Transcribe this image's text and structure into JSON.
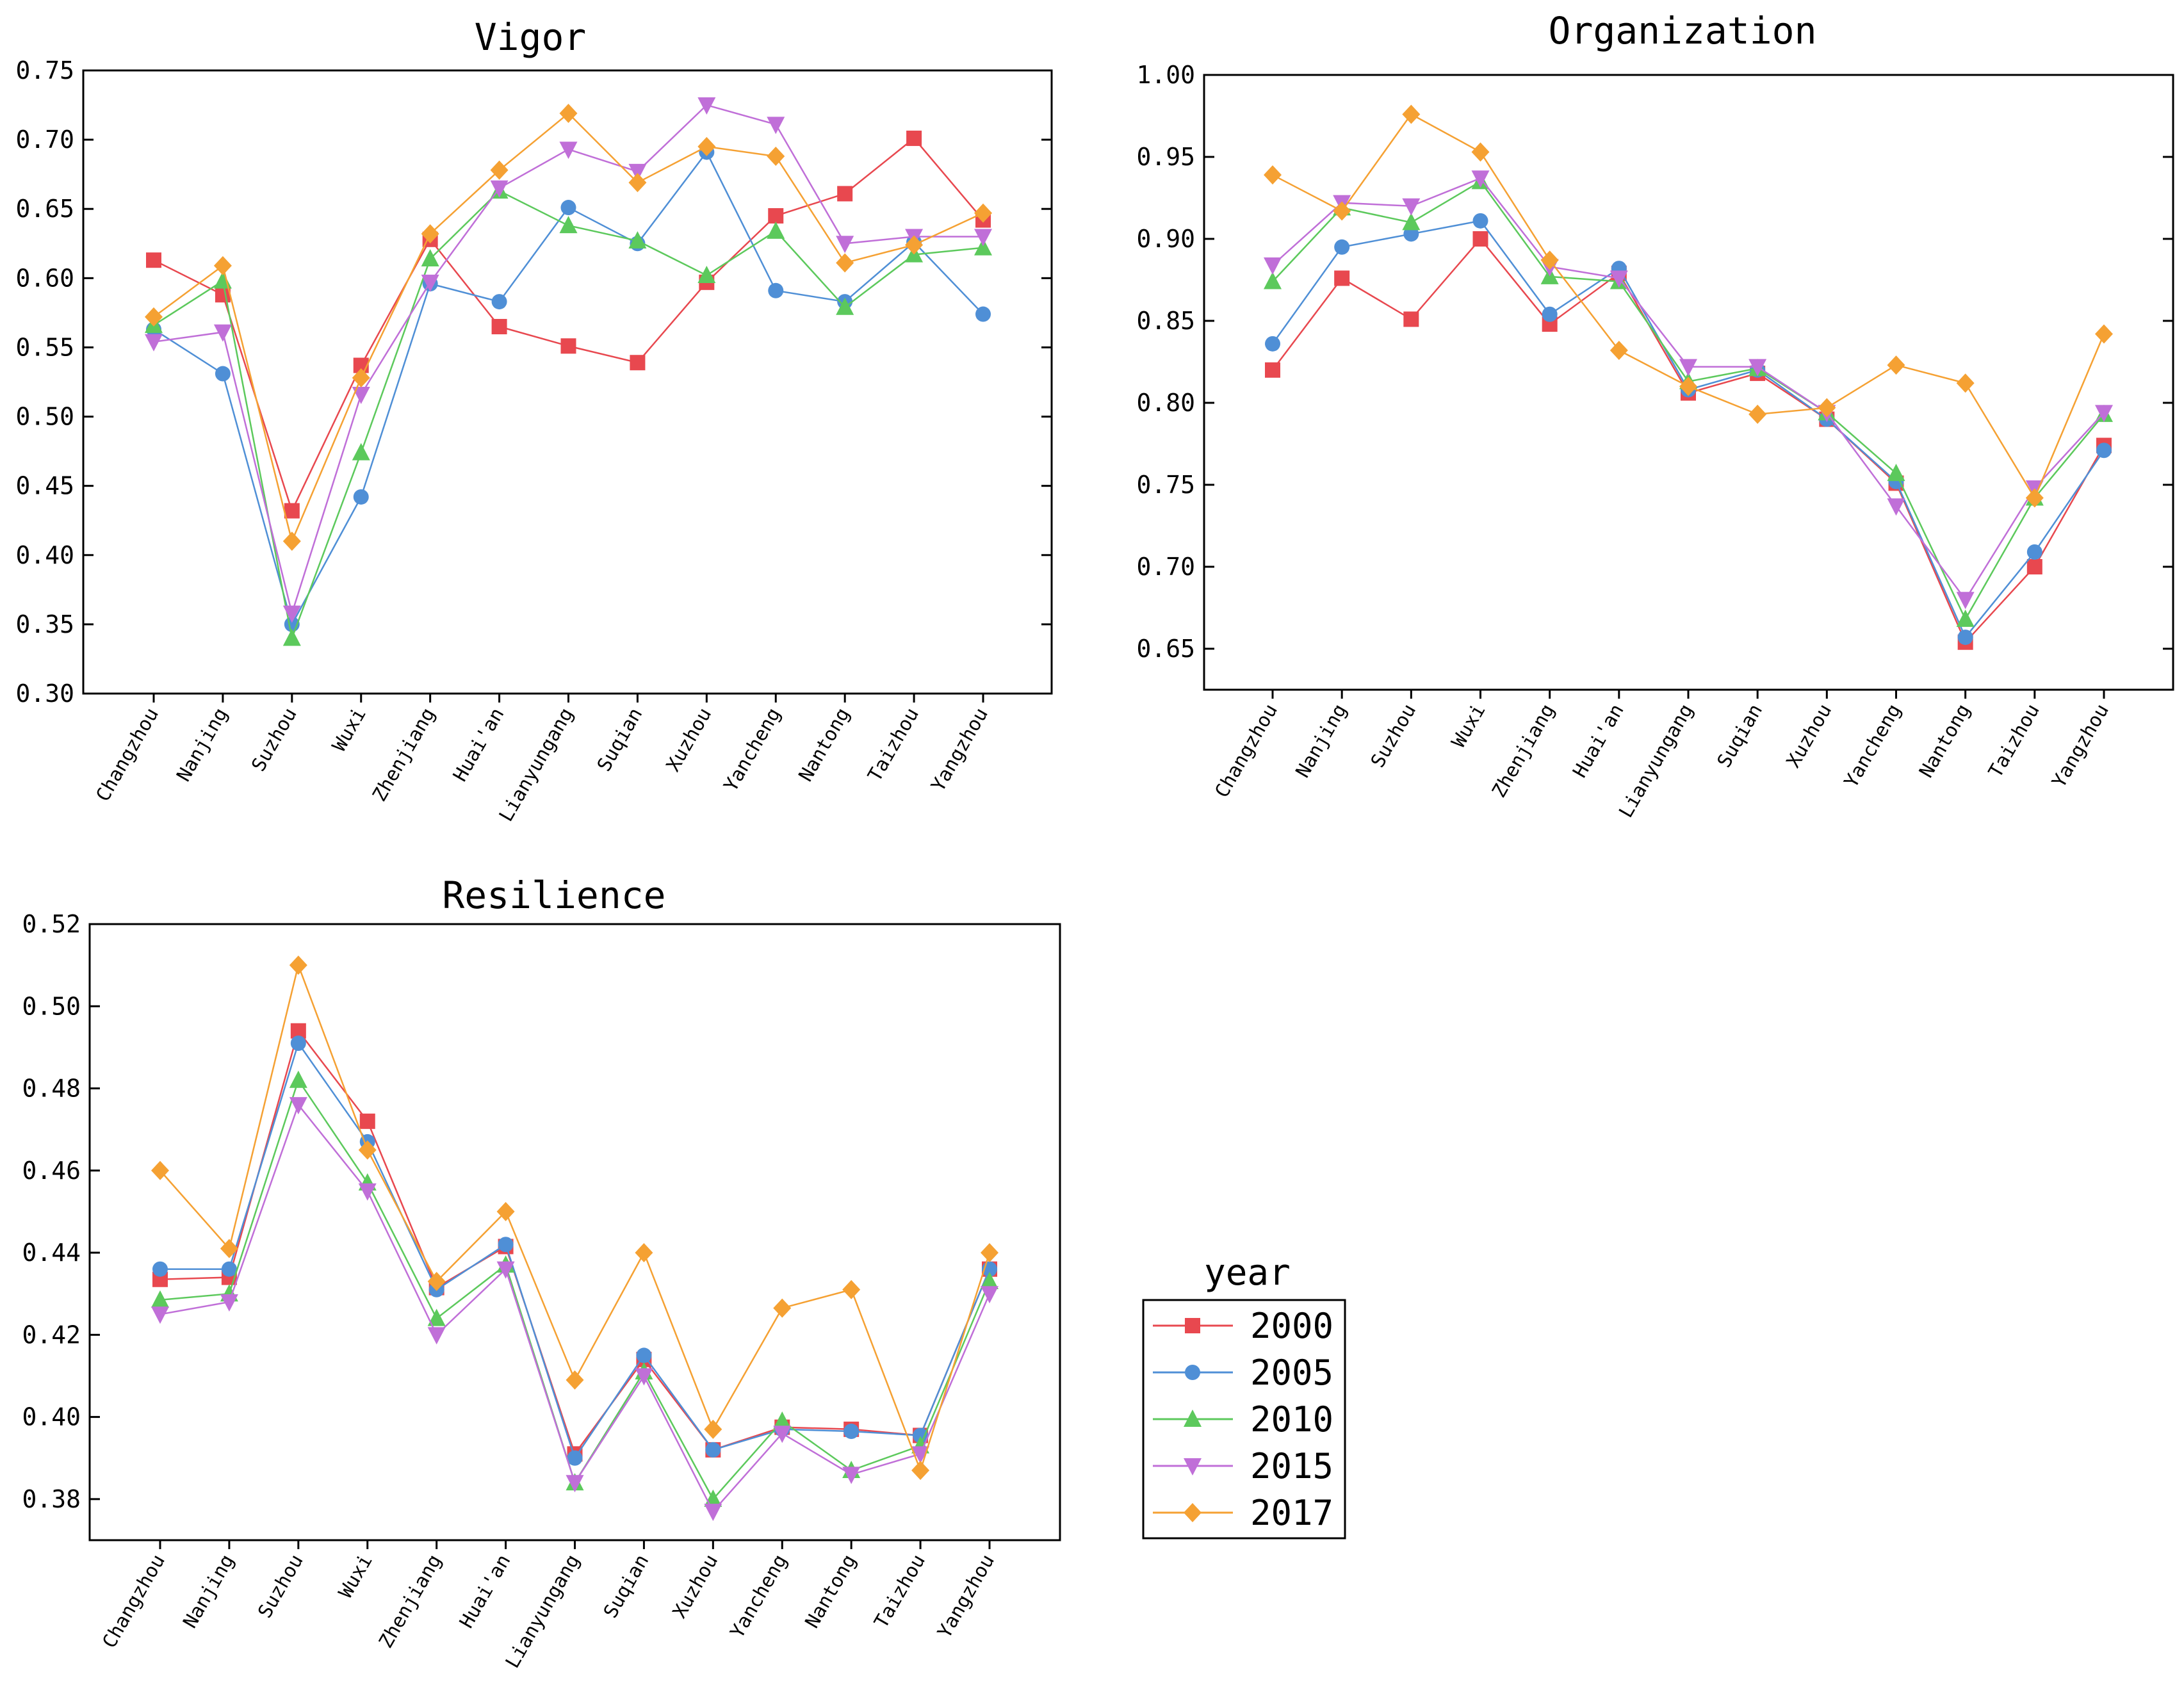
{
  "chart_data": [
    {
      "id": "vigor",
      "type": "line",
      "title": "Vigor",
      "xlabel": "",
      "ylabel": "",
      "ylim": [
        0.3,
        0.75
      ],
      "yticks": [
        "0.30",
        "0.35",
        "0.40",
        "0.45",
        "0.50",
        "0.55",
        "0.60",
        "0.65",
        "0.70",
        "0.75"
      ],
      "categories": [
        "Changzhou",
        "Nanjing",
        "Suzhou",
        "Wuxi",
        "Zhenjiang",
        "Huai'an",
        "Lianyungang",
        "Suqian",
        "Xuzhou",
        "Yancheng",
        "Nantong",
        "Taizhou",
        "Yangzhou"
      ],
      "series": [
        {
          "name": "2000",
          "values": [
            0.613,
            0.588,
            0.432,
            0.537,
            0.628,
            0.565,
            0.551,
            0.539,
            0.597,
            0.645,
            0.661,
            0.701,
            0.642
          ]
        },
        {
          "name": "2005",
          "values": [
            0.563,
            0.531,
            0.35,
            0.442,
            0.596,
            0.583,
            0.651,
            0.625,
            0.691,
            0.591,
            0.583,
            0.626,
            0.574
          ]
        },
        {
          "name": "2010",
          "values": [
            0.566,
            0.598,
            0.34,
            0.474,
            0.614,
            0.663,
            0.638,
            0.627,
            0.602,
            0.634,
            0.579,
            0.617,
            0.622
          ]
        },
        {
          "name": "2015",
          "values": [
            0.554,
            0.561,
            0.358,
            0.516,
            0.597,
            0.665,
            0.693,
            0.677,
            0.725,
            0.711,
            0.625,
            0.63,
            0.63
          ]
        },
        {
          "name": "2017",
          "values": [
            0.572,
            0.609,
            0.41,
            0.528,
            0.632,
            0.678,
            0.719,
            0.669,
            0.695,
            0.688,
            0.611,
            0.624,
            0.647
          ]
        }
      ]
    },
    {
      "id": "organization",
      "type": "line",
      "title": "Organization",
      "xlabel": "",
      "ylabel": "",
      "ylim": [
        0.625,
        1.0
      ],
      "yticks": [
        "0.65",
        "0.70",
        "0.75",
        "0.80",
        "0.85",
        "0.90",
        "0.95",
        "1.00"
      ],
      "categories": [
        "Changzhou",
        "Nanjing",
        "Suzhou",
        "Wuxi",
        "Zhenjiang",
        "Huai'an",
        "Lianyungang",
        "Suqian",
        "Xuzhou",
        "Yancheng",
        "Nantong",
        "Taizhou",
        "Yangzhou"
      ],
      "series": [
        {
          "name": "2000",
          "values": [
            0.82,
            0.876,
            0.851,
            0.9,
            0.848,
            0.879,
            0.806,
            0.818,
            0.79,
            0.751,
            0.654,
            0.7,
            0.774
          ]
        },
        {
          "name": "2005",
          "values": [
            0.836,
            0.895,
            0.903,
            0.911,
            0.854,
            0.882,
            0.808,
            0.82,
            0.79,
            0.752,
            0.657,
            0.709,
            0.771
          ]
        },
        {
          "name": "2010",
          "values": [
            0.874,
            0.919,
            0.91,
            0.935,
            0.877,
            0.874,
            0.813,
            0.821,
            0.794,
            0.757,
            0.668,
            0.742,
            0.793
          ]
        },
        {
          "name": "2015",
          "values": [
            0.884,
            0.922,
            0.92,
            0.937,
            0.883,
            0.876,
            0.822,
            0.822,
            0.794,
            0.737,
            0.68,
            0.748,
            0.794
          ]
        },
        {
          "name": "2017",
          "values": [
            0.939,
            0.917,
            0.976,
            0.953,
            0.887,
            0.832,
            0.81,
            0.793,
            0.797,
            0.823,
            0.812,
            0.742,
            0.842
          ]
        }
      ]
    },
    {
      "id": "resilience",
      "type": "line",
      "title": "Resilience",
      "xlabel": "",
      "ylabel": "",
      "ylim": [
        0.37,
        0.52
      ],
      "yticks": [
        "0.38",
        "0.40",
        "0.42",
        "0.44",
        "0.46",
        "0.48",
        "0.50",
        "0.52"
      ],
      "categories": [
        "Changzhou",
        "Nanjing",
        "Suzhou",
        "Wuxi",
        "Zhenjiang",
        "Huai'an",
        "Lianyungang",
        "Suqian",
        "Xuzhou",
        "Yancheng",
        "Nantong",
        "Taizhou",
        "Yangzhou"
      ],
      "series": [
        {
          "name": "2000",
          "values": [
            0.4335,
            0.434,
            0.494,
            0.472,
            0.4315,
            0.4415,
            0.391,
            0.414,
            0.392,
            0.3975,
            0.397,
            0.3955,
            0.436
          ]
        },
        {
          "name": "2005",
          "values": [
            0.436,
            0.436,
            0.491,
            0.467,
            0.431,
            0.442,
            0.39,
            0.415,
            0.392,
            0.397,
            0.3965,
            0.3955,
            0.436
          ]
        },
        {
          "name": "2010",
          "values": [
            0.4285,
            0.43,
            0.482,
            0.457,
            0.424,
            0.437,
            0.384,
            0.411,
            0.38,
            0.399,
            0.387,
            0.393,
            0.433
          ]
        },
        {
          "name": "2015",
          "values": [
            0.425,
            0.428,
            0.476,
            0.455,
            0.42,
            0.436,
            0.384,
            0.41,
            0.377,
            0.396,
            0.386,
            0.391,
            0.43
          ]
        },
        {
          "name": "2017",
          "values": [
            0.46,
            0.441,
            0.51,
            0.465,
            0.433,
            0.45,
            0.409,
            0.44,
            0.397,
            0.4265,
            0.431,
            0.387,
            0.44
          ]
        }
      ]
    }
  ],
  "legend": {
    "title": "year",
    "placement": "bottom-right",
    "items": [
      {
        "name": "2000",
        "color": "#e8484f",
        "marker": "square"
      },
      {
        "name": "2005",
        "color": "#4f8fd6",
        "marker": "circle"
      },
      {
        "name": "2010",
        "color": "#5cc95c",
        "marker": "triangle-up"
      },
      {
        "name": "2015",
        "color": "#c06fd8",
        "marker": "triangle-down"
      },
      {
        "name": "2017",
        "color": "#f5a133",
        "marker": "diamond"
      }
    ]
  }
}
